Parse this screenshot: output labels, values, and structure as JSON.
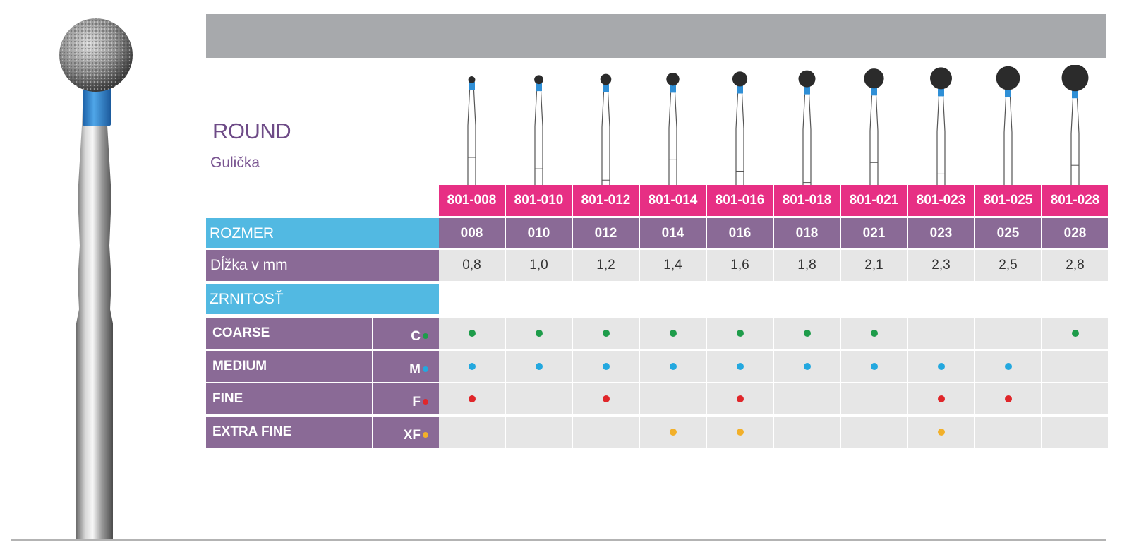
{
  "header": {
    "title": "ROUND",
    "subtitle": "Gulička"
  },
  "labels": {
    "size": "ROZMER",
    "length": "Dĺžka v mm",
    "grit": "ZRNITOSŤ"
  },
  "codes": [
    "801-008",
    "801-010",
    "801-012",
    "801-014",
    "801-016",
    "801-018",
    "801-021",
    "801-023",
    "801-025",
    "801-028"
  ],
  "sizes": [
    "008",
    "010",
    "012",
    "014",
    "016",
    "018",
    "021",
    "023",
    "025",
    "028"
  ],
  "lengths": [
    "0,8",
    "1,0",
    "1,2",
    "1,4",
    "1,6",
    "1,8",
    "2,1",
    "2,3",
    "2,5",
    "2,8"
  ],
  "grits": [
    {
      "name": "COARSE",
      "code": "C",
      "color": "#1e9c4a",
      "availability": [
        true,
        true,
        true,
        true,
        true,
        true,
        true,
        false,
        false,
        true
      ]
    },
    {
      "name": "MEDIUM",
      "code": "M",
      "color": "#23a8df",
      "availability": [
        true,
        true,
        true,
        true,
        true,
        true,
        true,
        true,
        true,
        false
      ]
    },
    {
      "name": "FINE",
      "code": "F",
      "color": "#e0262a",
      "availability": [
        true,
        false,
        true,
        false,
        true,
        false,
        false,
        true,
        true,
        false
      ]
    },
    {
      "name": "EXTRA FINE",
      "code": "XF",
      "color": "#f2b02a",
      "availability": [
        false,
        false,
        false,
        true,
        true,
        false,
        false,
        true,
        false,
        false
      ]
    }
  ],
  "colors": {
    "header_bar": "#a7a9ac",
    "code_bg": "#e72f84",
    "purple": "#8a6a96",
    "blue": "#52b9e2",
    "band": "#2f8fd6"
  }
}
